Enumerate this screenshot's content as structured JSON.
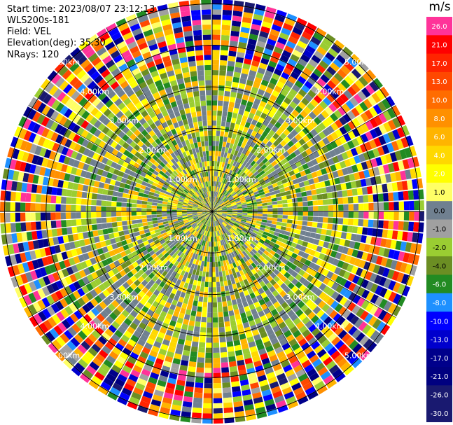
{
  "header": {
    "start_time": "Start time: 2023/08/07 23:12:13",
    "instrument": "WLS200s-181",
    "field": "Field: VEL",
    "elevation": "Elevation(deg): 35.30",
    "nrays": "NRays: 120"
  },
  "ppi": {
    "nrays": 120,
    "ranges_km": [
      1,
      2,
      3,
      4,
      5
    ],
    "range_label_suffix": ".00km",
    "range_labels": [
      "1.00km",
      "2.00km",
      "3.00km",
      "4.00km",
      "5.00km"
    ],
    "background_color": "#708090"
  },
  "colorbar": {
    "unit": "m/s",
    "tick_labels": [
      "26.0",
      "21.0",
      "17.0",
      "13.0",
      "10.0",
      "8.0",
      "6.0",
      "4.0",
      "2.0",
      "1.0",
      "0.0",
      "-1.0",
      "-2.0",
      "-4.0",
      "-6.0",
      "-8.0",
      "-10.0",
      "-13.0",
      "-17.0",
      "-21.0",
      "-26.0",
      "-30.0"
    ],
    "colors": [
      "#ff3399",
      "#ff0000",
      "#ff2400",
      "#ff4800",
      "#ff6c00",
      "#ff9000",
      "#ffb400",
      "#ffd800",
      "#ffff00",
      "#ffff66",
      "#708090",
      "#a0a0a0",
      "#9acd32",
      "#6b8e23",
      "#228b22",
      "#1e90ff",
      "#0000ff",
      "#0000cd",
      "#00008b",
      "#000080",
      "#191970"
    ]
  }
}
